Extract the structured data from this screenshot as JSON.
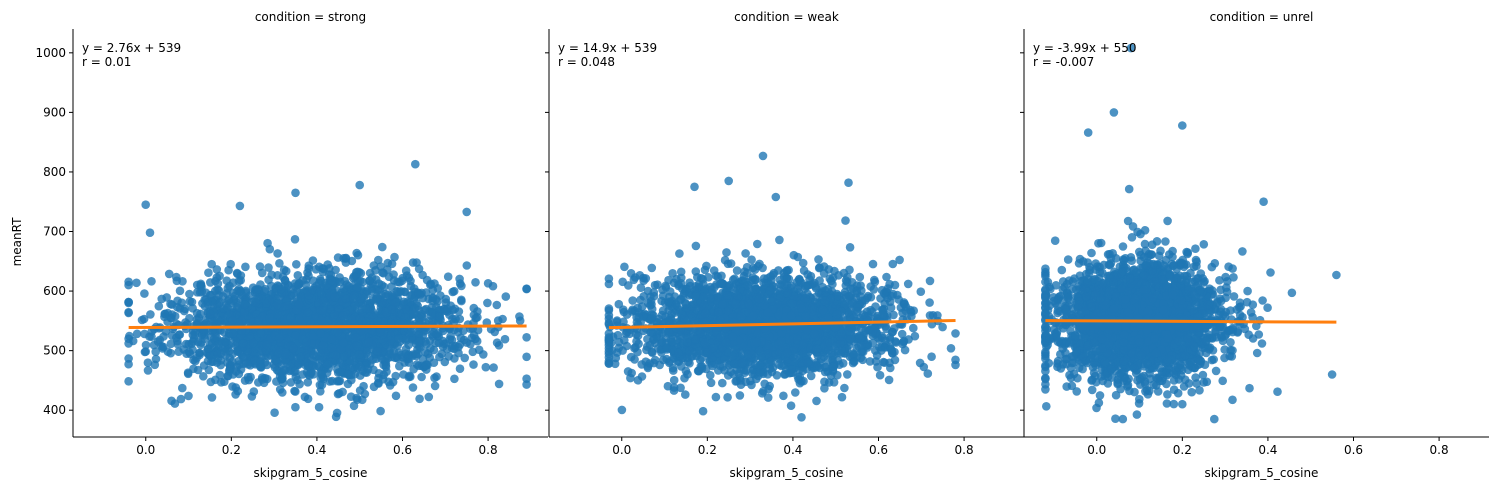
{
  "chart_data": {
    "type": "scatter",
    "layout": "facet-grid",
    "xlabel": "skipgram_5_cosine",
    "ylabel": "meanRT",
    "xlim": [
      -0.17,
      0.94
    ],
    "ylim": [
      355,
      1040
    ],
    "xticks": [
      0.0,
      0.2,
      0.4,
      0.6,
      0.8
    ],
    "xtick_labels": [
      "0.0",
      "0.2",
      "0.4",
      "0.6",
      "0.8"
    ],
    "yticks": [
      400,
      500,
      600,
      700,
      800,
      900,
      1000
    ],
    "ytick_labels": [
      "400",
      "500",
      "600",
      "700",
      "800",
      "900",
      "1000"
    ],
    "grid": false,
    "colors": {
      "points": "#1f77b4",
      "regression": "#ff7f0e"
    },
    "panels": [
      {
        "title": "condition = strong",
        "equation": "y = 2.76x + 539",
        "r_text": "r = 0.01",
        "regression": {
          "slope": 2.76,
          "intercept": 539,
          "x_range": [
            -0.04,
            0.89
          ]
        },
        "scatter": {
          "x_range": [
            -0.04,
            0.89
          ],
          "x_mean": 0.4,
          "x_sd": 0.17,
          "y_mean": 540,
          "y_sd": 45,
          "n": 2600
        },
        "highlighted_points": [
          {
            "x": 0.63,
            "y": 813
          },
          {
            "x": 0.5,
            "y": 778
          },
          {
            "x": 0.35,
            "y": 765
          },
          {
            "x": 0.0,
            "y": 745
          },
          {
            "x": 0.22,
            "y": 743
          },
          {
            "x": 0.75,
            "y": 733
          },
          {
            "x": 0.01,
            "y": 698
          },
          {
            "x": 0.1,
            "y": 424
          },
          {
            "x": 0.89,
            "y": 443
          }
        ]
      },
      {
        "title": "condition = weak",
        "equation": "y = 14.9x + 539",
        "r_text": "r = 0.048",
        "regression": {
          "slope": 14.9,
          "intercept": 539,
          "x_range": [
            -0.03,
            0.78
          ]
        },
        "scatter": {
          "x_range": [
            -0.03,
            0.78
          ],
          "x_mean": 0.33,
          "x_sd": 0.15,
          "y_mean": 543,
          "y_sd": 42,
          "n": 2600
        },
        "highlighted_points": [
          {
            "x": 0.33,
            "y": 827
          },
          {
            "x": 0.25,
            "y": 785
          },
          {
            "x": 0.17,
            "y": 775
          },
          {
            "x": 0.53,
            "y": 782
          },
          {
            "x": 0.36,
            "y": 758
          },
          {
            "x": 0.42,
            "y": 388
          },
          {
            "x": 0.22,
            "y": 422
          },
          {
            "x": 0.78,
            "y": 476
          }
        ]
      },
      {
        "title": "condition = unrel",
        "equation": "y = -3.99x + 550",
        "r_text": "r = -0.007",
        "regression": {
          "slope": -3.99,
          "intercept": 550,
          "x_range": [
            -0.12,
            0.56
          ]
        },
        "scatter": {
          "x_range": [
            -0.12,
            0.56
          ],
          "x_mean": 0.1,
          "x_sd": 0.1,
          "y_mean": 550,
          "y_sd": 50,
          "n": 2600
        },
        "highlighted_points": [
          {
            "x": 0.08,
            "y": 1008
          },
          {
            "x": 0.04,
            "y": 900
          },
          {
            "x": 0.2,
            "y": 878
          },
          {
            "x": -0.02,
            "y": 866
          },
          {
            "x": 0.39,
            "y": 750
          },
          {
            "x": 0.2,
            "y": 410
          },
          {
            "x": 0.55,
            "y": 460
          },
          {
            "x": 0.56,
            "y": 627
          }
        ]
      }
    ]
  }
}
